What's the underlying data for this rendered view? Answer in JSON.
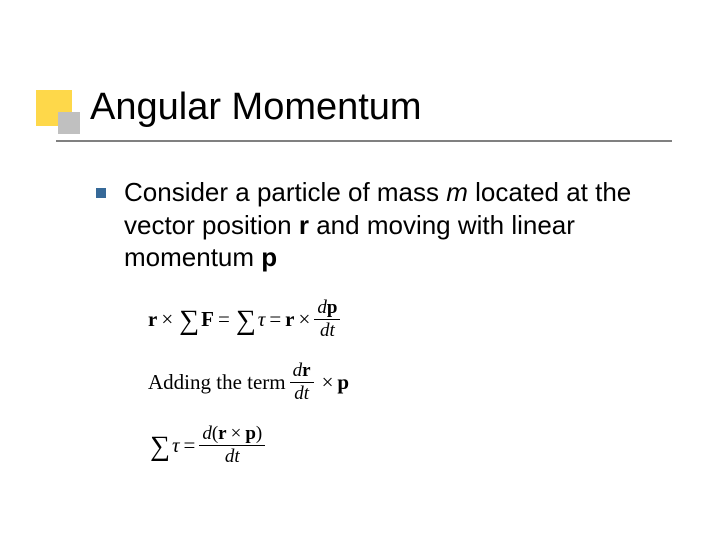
{
  "colors": {
    "background": "#ffffff",
    "title_marker_yellow": "#fed84a",
    "title_marker_gray": "#c0c0c0",
    "title_underline": "#808080",
    "bullet_square": "#366998",
    "text": "#000000"
  },
  "typography": {
    "title_font": "Verdana",
    "title_fontsize_pt": 29,
    "body_font": "Verdana",
    "body_fontsize_pt": 20,
    "equation_font": "Times New Roman",
    "equation_fontsize_pt": 16
  },
  "title": "Angular Momentum",
  "body": {
    "bullet_text_parts": {
      "p1": "Consider a particle of mass ",
      "m": "m",
      "p2": " located at the vector position ",
      "r": "r",
      "p3": " and moving with linear momentum ",
      "p": "p"
    }
  },
  "equations": {
    "line1": {
      "r": "r",
      "times": "×",
      "sum1": "∑",
      "F": "F",
      "eq": "=",
      "sum2": "∑",
      "tau": "τ",
      "eq2": "=",
      "r2": "r",
      "times2": "×",
      "frac_num_d": "d",
      "frac_num_p": "p",
      "frac_den": "dt"
    },
    "line2": {
      "prefix": "Adding the term ",
      "frac_num_d": "d",
      "frac_num_r": "r",
      "frac_den": "dt",
      "times": "×",
      "p": "p"
    },
    "line3": {
      "sum": "∑",
      "tau": "τ",
      "eq": "=",
      "frac_num_d": "d",
      "frac_num_open": "(",
      "frac_num_r": "r",
      "frac_num_times": "×",
      "frac_num_p": "p",
      "frac_num_close": ")",
      "frac_den": "dt"
    }
  }
}
